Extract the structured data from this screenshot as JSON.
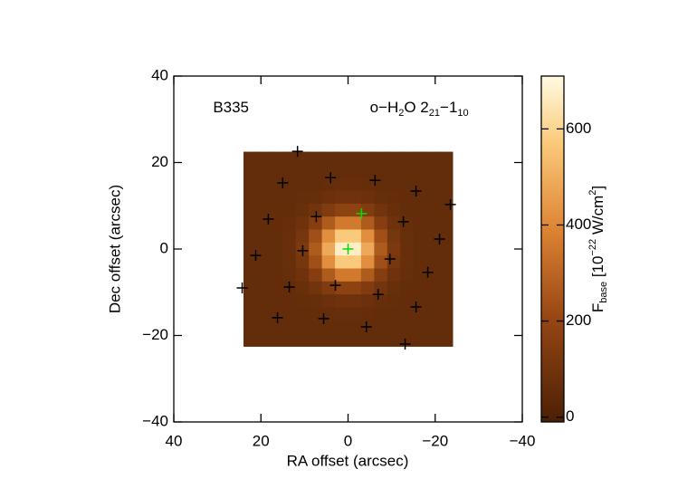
{
  "chart_data": {
    "type": "heatmap",
    "xlabel": "RA offset (arcsec)",
    "ylabel": "Dec offset (arcsec)",
    "xlim": [
      40,
      -40
    ],
    "ylim": [
      -40,
      40
    ],
    "xticks": [
      40,
      20,
      0,
      {
        "value": -20,
        "label": "−20"
      },
      {
        "value": -40,
        "label": "−40"
      }
    ],
    "yticks": [
      {
        "value": -40,
        "label": "−40"
      },
      {
        "value": -20,
        "label": "−20"
      },
      0,
      20,
      40
    ],
    "annotations": [
      {
        "x": 31,
        "y": 32.5,
        "parts": [
          {
            "text": "B335"
          }
        ]
      },
      {
        "x": -5,
        "y": 32.5,
        "parts": [
          {
            "text": "o−H"
          },
          {
            "text": "2",
            "sub": true
          },
          {
            "text": "O 2"
          },
          {
            "text": "21",
            "sub": true
          },
          {
            "text": "−1"
          },
          {
            "text": "10",
            "sub": true
          }
        ]
      }
    ],
    "x": [
      22.5,
      19.5,
      16.5,
      13.5,
      10.5,
      7.5,
      4.5,
      1.5,
      -1.5,
      -4.5,
      -7.5,
      -10.5,
      -13.5,
      -16.5,
      -19.5,
      -22.5
    ],
    "y": [
      21,
      18,
      15,
      12,
      9,
      6,
      3,
      0,
      -3,
      -6,
      -9,
      -12,
      -15,
      -18,
      -21
    ],
    "z": [
      [
        60,
        60,
        60,
        60,
        60,
        60,
        60,
        60,
        60,
        60,
        60,
        60,
        60,
        60,
        60,
        60
      ],
      [
        60,
        60,
        60,
        60,
        60,
        60,
        60,
        61,
        61,
        60,
        60,
        60,
        60,
        60,
        60,
        60
      ],
      [
        60,
        60,
        60,
        60,
        61,
        62,
        65,
        67,
        67,
        65,
        62,
        61,
        60,
        60,
        60,
        60
      ],
      [
        60,
        60,
        60,
        61,
        64,
        72,
        84,
        94,
        94,
        84,
        72,
        64,
        61,
        60,
        60,
        60
      ],
      [
        60,
        60,
        61,
        63,
        74,
        101,
        145,
        181,
        181,
        145,
        101,
        74,
        63,
        61,
        60,
        60
      ],
      [
        60,
        60,
        61,
        68,
        94,
        161,
        268,
        358,
        358,
        268,
        161,
        94,
        68,
        61,
        60,
        60
      ],
      [
        60,
        60,
        63,
        74,
        118,
        234,
        417,
        571,
        571,
        417,
        234,
        118,
        74,
        63,
        60,
        60
      ],
      [
        60,
        60,
        63,
        77,
        130,
        268,
        487,
        672,
        672,
        487,
        268,
        130,
        77,
        63,
        60,
        60
      ],
      [
        60,
        60,
        63,
        74,
        118,
        234,
        417,
        571,
        571,
        417,
        234,
        118,
        74,
        63,
        60,
        60
      ],
      [
        60,
        60,
        61,
        68,
        94,
        161,
        268,
        358,
        358,
        268,
        161,
        94,
        68,
        61,
        60,
        60
      ],
      [
        60,
        60,
        61,
        63,
        74,
        101,
        145,
        181,
        181,
        145,
        101,
        74,
        63,
        61,
        60,
        60
      ],
      [
        60,
        60,
        60,
        61,
        64,
        72,
        84,
        94,
        94,
        84,
        72,
        64,
        61,
        60,
        60,
        60
      ],
      [
        60,
        60,
        60,
        60,
        61,
        62,
        65,
        67,
        67,
        65,
        62,
        61,
        60,
        60,
        60,
        60
      ],
      [
        60,
        60,
        60,
        60,
        60,
        60,
        60,
        61,
        61,
        60,
        60,
        60,
        60,
        60,
        60,
        60
      ],
      [
        60,
        60,
        60,
        60,
        60,
        60,
        60,
        60,
        60,
        60,
        60,
        60,
        60,
        60,
        60,
        60
      ]
    ],
    "markers": [
      {
        "color": "#000000",
        "x": [
          11.6,
          15.0,
          4.0,
          -6.2,
          -15.6,
          -23.5,
          18.3,
          7.3,
          -12.7,
          10.4,
          21.2,
          -9.6,
          -21.0,
          24.3,
          13.5,
          2.9,
          -6.9,
          -18.3,
          16.2,
          5.6,
          -4.2,
          -15.6,
          -13.1
        ],
        "y": [
          22.6,
          15.3,
          16.5,
          15.9,
          13.4,
          10.3,
          6.9,
          7.5,
          6.3,
          -0.4,
          -1.5,
          -2.3,
          2.3,
          -9.0,
          -8.8,
          -8.4,
          -10.5,
          -5.4,
          -15.9,
          -16.1,
          -18.0,
          -13.4,
          -22.0
        ]
      },
      {
        "color": "#00e000",
        "x": [
          0,
          -3.1
        ],
        "y": [
          0,
          8.2
        ]
      }
    ],
    "colorbar": {
      "clim": [
        -10,
        710
      ],
      "ticks": [
        0,
        200,
        400,
        600
      ],
      "label_parts": [
        {
          "text": "F"
        },
        {
          "text": "base",
          "sub": true
        },
        {
          "text": " [10"
        },
        {
          "text": "−22",
          "sup": true
        },
        {
          "text": " W/cm"
        },
        {
          "text": "2",
          "sup": true
        },
        {
          "text": "]"
        }
      ]
    }
  }
}
